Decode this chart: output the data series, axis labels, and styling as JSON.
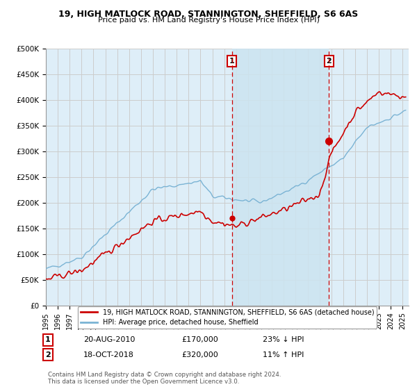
{
  "title": "19, HIGH MATLOCK ROAD, STANNINGTON, SHEFFIELD, S6 6AS",
  "subtitle": "Price paid vs. HM Land Registry's House Price Index (HPI)",
  "ylabel_ticks": [
    "£0",
    "£50K",
    "£100K",
    "£150K",
    "£200K",
    "£250K",
    "£300K",
    "£350K",
    "£400K",
    "£450K",
    "£500K"
  ],
  "ytick_values": [
    0,
    50000,
    100000,
    150000,
    200000,
    250000,
    300000,
    350000,
    400000,
    450000,
    500000
  ],
  "ylim": [
    0,
    500000
  ],
  "xlim_start": 1995.0,
  "xlim_end": 2025.5,
  "sale1_x": 2010.63,
  "sale1_y": 170000,
  "sale1_label": "1",
  "sale2_x": 2018.79,
  "sale2_y": 320000,
  "sale2_label": "2",
  "hpi_color": "#7ab3d4",
  "price_color": "#cc0000",
  "vline_color": "#cc0000",
  "shade_color": "#cce4f0",
  "grid_color": "#cccccc",
  "bg_color": "#deeef8",
  "legend_label_price": "19, HIGH MATLOCK ROAD, STANNINGTON, SHEFFIELD, S6 6AS (detached house)",
  "legend_label_hpi": "HPI: Average price, detached house, Sheffield",
  "annotation1_date": "20-AUG-2010",
  "annotation1_price": "£170,000",
  "annotation1_hpi": "23% ↓ HPI",
  "annotation2_date": "18-OCT-2018",
  "annotation2_price": "£320,000",
  "annotation2_hpi": "11% ↑ HPI",
  "footer": "Contains HM Land Registry data © Crown copyright and database right 2024.\nThis data is licensed under the Open Government Licence v3.0."
}
